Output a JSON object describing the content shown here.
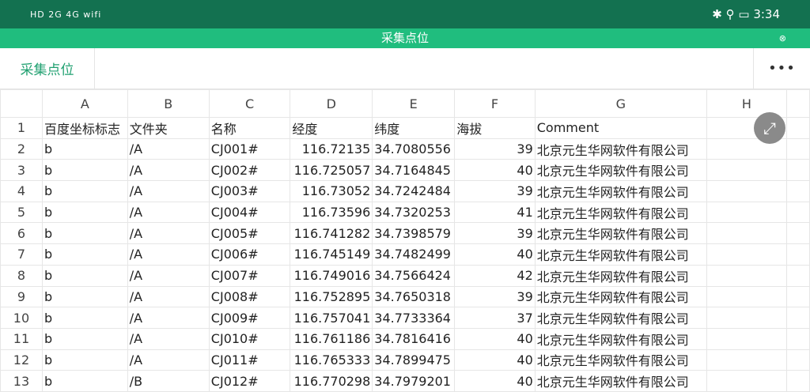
{
  "status_bar": {
    "left": "HD 2G 4G wifi",
    "time": "3:34"
  },
  "title": "采集点位",
  "toolbar": {
    "tab": "采集点位",
    "more": "•••"
  },
  "columns": [
    "A",
    "B",
    "C",
    "D",
    "E",
    "F",
    "G",
    "H"
  ],
  "header_row": [
    "百度坐标标志",
    "文件夹",
    "名称",
    "经度",
    "纬度",
    "海拔",
    "Comment"
  ],
  "rows": [
    [
      "b",
      "/A",
      "CJ001#",
      "116.72135",
      "34.7080556",
      "39",
      "北京元生华网软件有限公司"
    ],
    [
      "b",
      "/A",
      "CJ002#",
      "116.725057",
      "34.7164845",
      "40",
      "北京元生华网软件有限公司"
    ],
    [
      "b",
      "/A",
      "CJ003#",
      "116.73052",
      "34.7242484",
      "39",
      "北京元生华网软件有限公司"
    ],
    [
      "b",
      "/A",
      "CJ004#",
      "116.73596",
      "34.7320253",
      "41",
      "北京元生华网软件有限公司"
    ],
    [
      "b",
      "/A",
      "CJ005#",
      "116.741282",
      "34.7398579",
      "39",
      "北京元生华网软件有限公司"
    ],
    [
      "b",
      "/A",
      "CJ006#",
      "116.745149",
      "34.7482499",
      "40",
      "北京元生华网软件有限公司"
    ],
    [
      "b",
      "/A",
      "CJ007#",
      "116.749016",
      "34.7566424",
      "42",
      "北京元生华网软件有限公司"
    ],
    [
      "b",
      "/A",
      "CJ008#",
      "116.752895",
      "34.7650318",
      "39",
      "北京元生华网软件有限公司"
    ],
    [
      "b",
      "/A",
      "CJ009#",
      "116.757041",
      "34.7733364",
      "37",
      "北京元生华网软件有限公司"
    ],
    [
      "b",
      "/A",
      "CJ010#",
      "116.761186",
      "34.7816416",
      "40",
      "北京元生华网软件有限公司"
    ],
    [
      "b",
      "/A",
      "CJ011#",
      "116.765333",
      "34.7899475",
      "40",
      "北京元生华网软件有限公司"
    ],
    [
      "b",
      "/B",
      "CJ012#",
      "116.770298",
      "34.7979201",
      "40",
      "北京元生华网软件有限公司"
    ]
  ],
  "accent": "#20bd7e"
}
